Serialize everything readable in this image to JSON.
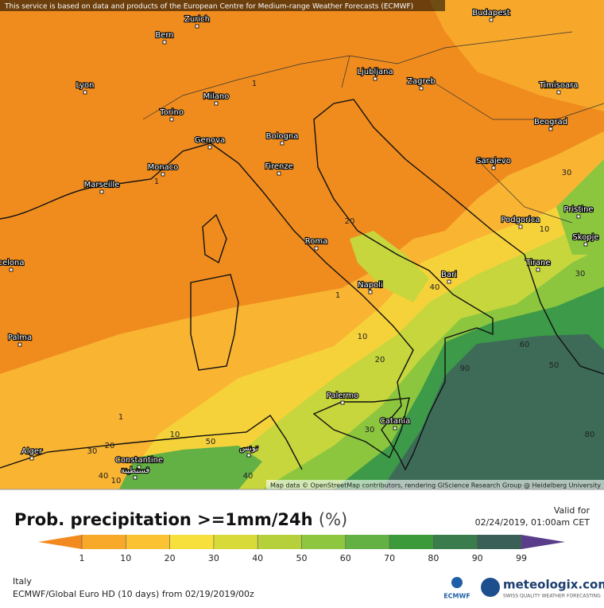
{
  "notice": "This service is based on data and products of the European Centre for Medium-range Weather Forecasts (ECMWF)",
  "cities": [
    "Bern",
    "Zurich",
    "Budapest",
    "Lyon",
    "Milano",
    "Ljubljana",
    "Zagreb",
    "Timisoara",
    "Torino",
    "Bologna",
    "Beograd",
    "Genova",
    "Monaco",
    "Firenze",
    "Sarajevo",
    "Marseille",
    "Podgorica",
    "Pristine",
    "Roma",
    "Skopje",
    "Bari",
    "Tirane",
    "Napoli",
    "celona",
    "Palma",
    "Palermo",
    "Catania",
    "Alger",
    "Constantine",
    "قسنطينة",
    "تونس"
  ],
  "contour_labels": [
    1,
    1,
    20,
    40,
    1,
    10,
    20,
    60,
    50,
    90,
    30,
    30,
    80,
    10,
    1,
    10,
    20,
    30,
    50,
    40,
    10,
    40,
    30
  ],
  "attribution": "Map data © OpenStreetMap contributors, rendering GIScience Research Group @ Heidelberg University",
  "legend": {
    "title": "Prob. precipitation >=1mm/24h",
    "unit": "(%)",
    "valid_label": "Valid for",
    "valid_time": "02/24/2019, 01:00am CET",
    "ticks": [
      1,
      10,
      20,
      30,
      40,
      50,
      60,
      70,
      80,
      90,
      99
    ],
    "colors": [
      "#f28a1f",
      "#f9a92a",
      "#fbc233",
      "#f8e03c",
      "#d8da3a",
      "#b6d03c",
      "#8fc640",
      "#63b044",
      "#3d9a3a",
      "#3b7c4c",
      "#3a5f57",
      "#5a3d8a"
    ]
  },
  "footer": {
    "region": "Italy",
    "model": "ECMWF/Global Euro HD (10 days) from 02/19/2019/00z",
    "brand": "meteologix.com",
    "tagline": "SWISS QUALITY WEATHER FORECASTING",
    "ecmwf": "ECMWF"
  }
}
